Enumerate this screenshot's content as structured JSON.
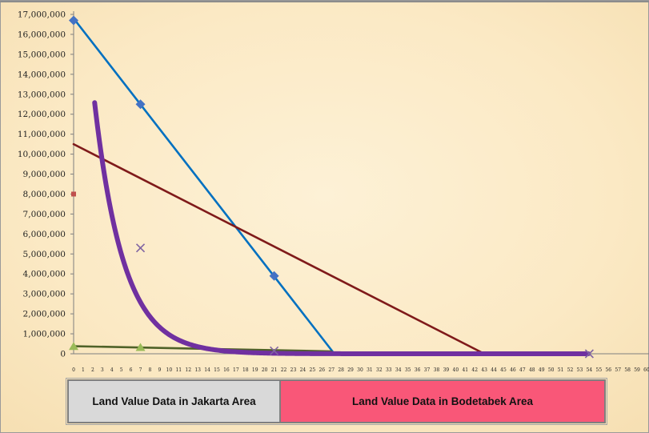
{
  "chart_data": {
    "type": "scatter",
    "title": "",
    "xlabel": "",
    "ylabel": "",
    "xlim": [
      0,
      60
    ],
    "ylim": [
      0,
      17000000
    ],
    "y_ticks": [
      "17,000,000",
      "16,000,000",
      "15,000,000",
      "14,000,000",
      "13,000,000",
      "12,000,000",
      "11,000,000",
      "10,000,000",
      "9,000,000",
      "8,000,000",
      "7,000,000",
      "6,000,000",
      "5,000,000",
      "4,000,000",
      "3,000,000",
      "2,000,000",
      "1,000,000",
      "0"
    ],
    "y_tick_values": [
      17000000,
      16000000,
      15000000,
      14000000,
      13000000,
      12000000,
      11000000,
      10000000,
      9000000,
      8000000,
      7000000,
      6000000,
      5000000,
      4000000,
      3000000,
      2000000,
      1000000,
      0
    ],
    "x_ticks": [
      "0",
      "1",
      "2",
      "3",
      "4",
      "5",
      "6",
      "7",
      "8",
      "9",
      "10",
      "11",
      "12",
      "13",
      "14",
      "15",
      "16",
      "17",
      "18",
      "19",
      "20",
      "21",
      "22",
      "23",
      "24",
      "25",
      "26",
      "27",
      "28",
      "29",
      "30",
      "31",
      "32",
      "33",
      "34",
      "35",
      "36",
      "37",
      "38",
      "39",
      "40",
      "41",
      "42",
      "43",
      "44",
      "45",
      "46",
      "47",
      "48",
      "49",
      "50",
      "51",
      "52",
      "53",
      "54",
      "55",
      "56",
      "57",
      "58",
      "59",
      "60"
    ],
    "grid": false,
    "series": [
      {
        "marker": "diamond",
        "color": "#4472c4",
        "points": [
          [
            0,
            16700000
          ],
          [
            7,
            12500000
          ],
          [
            21,
            3900000
          ]
        ]
      },
      {
        "marker": "square",
        "color": "#c0504d",
        "points": [
          [
            0,
            8000000
          ]
        ]
      },
      {
        "marker": "triangle",
        "color": "#9bbb59",
        "points": [
          [
            0,
            350000
          ],
          [
            7,
            300000
          ]
        ]
      },
      {
        "marker": "x",
        "color": "#8064a2",
        "points": [
          [
            7,
            5300000
          ],
          [
            21,
            150000
          ],
          [
            54,
            0
          ]
        ]
      }
    ],
    "trendlines": [
      {
        "kind": "linear",
        "color": "#0070c0",
        "from": [
          0,
          16800000
        ],
        "to": [
          27.3,
          0
        ]
      },
      {
        "kind": "linear",
        "color": "#7f1a1a",
        "from": [
          0,
          10500000
        ],
        "to": [
          43,
          0
        ]
      },
      {
        "kind": "linear",
        "color": "#4f6228",
        "from": [
          0,
          380000
        ],
        "to": [
          27,
          120000
        ]
      },
      {
        "kind": "exponential",
        "color": "#7030a0",
        "a": 26000000,
        "b": 0.33,
        "x_start": 2.2,
        "x_end": 54
      }
    ]
  },
  "legend": {
    "jakarta": "Land Value Data in Jakarta Area",
    "bodetabek": "Land Value Data in Bodetabek Area"
  },
  "colors": {
    "background": "#fbecc9",
    "jakarta_box": "#d9d9d9",
    "bodetabek_box": "#f95778"
  }
}
